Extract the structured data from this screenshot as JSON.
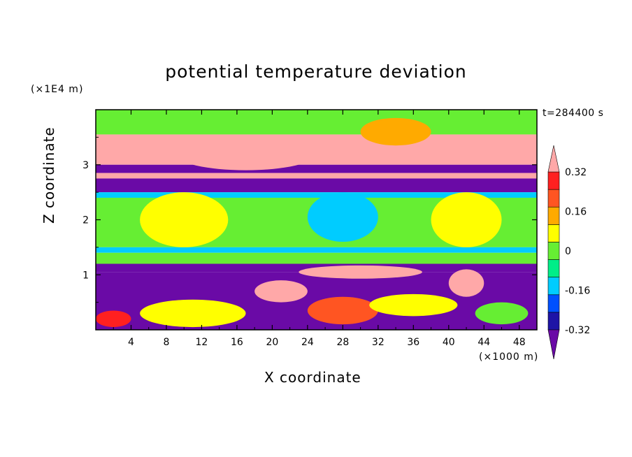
{
  "chart_data": {
    "type": "heatmap",
    "title": "potential temperature deviation",
    "xlabel": "X coordinate",
    "ylabel": "Z coordinate",
    "x_unit_label": "(×1000 m)",
    "y_unit_label": "(×1E4 m)",
    "timestamp": "t=284400 s",
    "xlim": [
      0,
      50
    ],
    "ylim": [
      0,
      4
    ],
    "x_ticks": [
      "4",
      "8",
      "12",
      "16",
      "20",
      "24",
      "28",
      "32",
      "36",
      "40",
      "44",
      "48"
    ],
    "y_ticks": [
      "1",
      "2",
      "3"
    ],
    "colorbar": {
      "labels": [
        "0.32",
        "0.16",
        "0",
        "-0.16",
        "-0.32"
      ],
      "levels": [
        -0.4,
        -0.32,
        -0.24,
        -0.16,
        -0.08,
        0,
        0.08,
        0.16,
        0.24,
        0.32,
        0.4
      ],
      "colors": [
        "#6a0aa6",
        "#1e14a6",
        "#0050ff",
        "#00ccff",
        "#00ee88",
        "#66ee33",
        "#ffff00",
        "#ffaa00",
        "#ff5522",
        "#ff2020",
        "#ffa8a8"
      ]
    },
    "bands": [
      {
        "z": [
          3.55,
          4.0
        ],
        "level": 0.02
      },
      {
        "z": [
          3.0,
          3.55
        ],
        "level": 0.4
      },
      {
        "z": [
          2.85,
          3.0
        ],
        "level": -0.4
      },
      {
        "z": [
          2.75,
          2.85
        ],
        "level": 0.4
      },
      {
        "z": [
          2.5,
          2.75
        ],
        "level": -0.4
      },
      {
        "z": [
          2.4,
          2.5
        ],
        "level": -0.12
      },
      {
        "z": [
          1.5,
          2.4
        ],
        "level": 0.03
      },
      {
        "z": [
          1.4,
          1.5
        ],
        "level": -0.12
      },
      {
        "z": [
          1.2,
          1.4
        ],
        "level": 0.02
      },
      {
        "z": [
          1.05,
          1.2
        ],
        "level": -0.4
      },
      {
        "z": [
          0.0,
          1.05
        ],
        "level": -0.4
      }
    ],
    "features": [
      {
        "x": 17,
        "z": 3.2,
        "rx": 8,
        "rz": 0.3,
        "level": 0.4
      },
      {
        "x": 34,
        "z": 3.6,
        "rx": 4,
        "rz": 0.25,
        "level": 0.2
      },
      {
        "x": 10,
        "z": 2.0,
        "rx": 5,
        "rz": 0.5,
        "level": 0.15
      },
      {
        "x": 28,
        "z": 2.05,
        "rx": 4,
        "rz": 0.45,
        "level": -0.12
      },
      {
        "x": 42,
        "z": 2.0,
        "rx": 4,
        "rz": 0.5,
        "level": 0.12
      },
      {
        "x": 30,
        "z": 1.05,
        "rx": 7,
        "rz": 0.12,
        "level": 0.4
      },
      {
        "x": 42,
        "z": 0.85,
        "rx": 2,
        "rz": 0.25,
        "level": 0.4
      },
      {
        "x": 21,
        "z": 0.7,
        "rx": 3,
        "rz": 0.2,
        "level": 0.4
      },
      {
        "x": 11,
        "z": 0.3,
        "rx": 6,
        "rz": 0.25,
        "level": 0.15
      },
      {
        "x": 28,
        "z": 0.35,
        "rx": 4,
        "rz": 0.25,
        "level": 0.25
      },
      {
        "x": 36,
        "z": 0.45,
        "rx": 5,
        "rz": 0.2,
        "level": 0.1
      },
      {
        "x": 2,
        "z": 0.2,
        "rx": 2,
        "rz": 0.15,
        "level": 0.35
      },
      {
        "x": 46,
        "z": 0.3,
        "rx": 3,
        "rz": 0.2,
        "level": 0.0
      }
    ],
    "legend_position": "right",
    "grid": false
  }
}
